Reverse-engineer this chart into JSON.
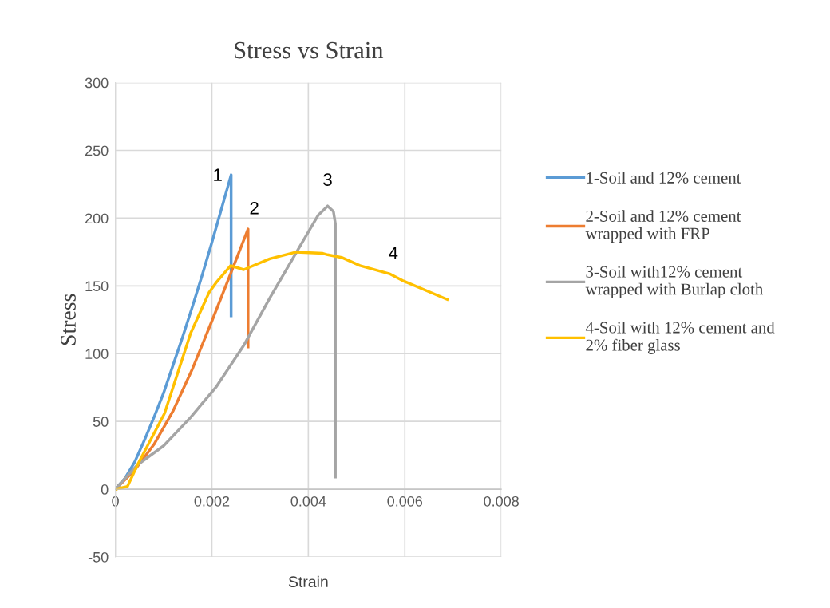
{
  "chart_data": {
    "type": "line",
    "title": "Stress vs Strain",
    "xlabel": "Strain",
    "ylabel": "Stress",
    "xlim": [
      0,
      0.008
    ],
    "xticks": [
      0,
      0.002,
      0.004,
      0.006,
      0.008
    ],
    "ylim": [
      -50,
      300
    ],
    "yticks": [
      -50,
      0,
      50,
      100,
      150,
      200,
      250,
      300
    ],
    "grid": true,
    "legend": "right",
    "marker": "none",
    "line_style": "solid",
    "series": [
      {
        "name": "1-Soil and 12% cement",
        "color": "#5b9bd5",
        "x": [
          0,
          0.0002,
          0.0004,
          0.0006,
          0.0008,
          0.001,
          0.0012,
          0.0014,
          0.0016,
          0.0018,
          0.002,
          0.0022,
          0.0024,
          0.0024
        ],
        "values": [
          0,
          8,
          20,
          36,
          53,
          71,
          92,
          113,
          135,
          158,
          182,
          207,
          232,
          128
        ]
      },
      {
        "name": "2-Soil and 12% cement\nwrapped with FRP",
        "color": "#ed7d31",
        "x": [
          0,
          0.0004,
          0.0008,
          0.0012,
          0.0016,
          0.002,
          0.0024,
          0.00275,
          0.00275
        ],
        "values": [
          0,
          14,
          33,
          58,
          89,
          124,
          160,
          192,
          105
        ]
      },
      {
        "name": "3-Soil with12% cement\nwrapped with Burlap cloth",
        "color": "#a5a5a5",
        "x": [
          0,
          0.00046,
          0.001,
          0.00156,
          0.0021,
          0.00266,
          0.0032,
          0.00387,
          0.0042,
          0.0044,
          0.00452,
          0.00456,
          0.00456
        ],
        "values": [
          0,
          18,
          32,
          53,
          76,
          106,
          141,
          182,
          202,
          209,
          205,
          196,
          9
        ]
      },
      {
        "name": "4-Soil with 12% cement and\n2% fiber glass",
        "color": "#ffc000",
        "x": [
          0,
          0.00025,
          0.00046,
          0.00102,
          0.00156,
          0.00194,
          0.0021,
          0.00239,
          0.00266,
          0.0032,
          0.00375,
          0.0043,
          0.0044,
          0.00469,
          0.00507,
          0.00568,
          0.00595,
          0.00688
        ],
        "values": [
          0,
          2,
          18,
          56,
          115,
          145,
          153,
          165,
          162,
          170,
          175,
          174,
          173,
          171,
          165,
          159,
          154,
          140
        ]
      }
    ],
    "annotations": [
      "1",
      "2",
      "3",
      "4"
    ]
  }
}
